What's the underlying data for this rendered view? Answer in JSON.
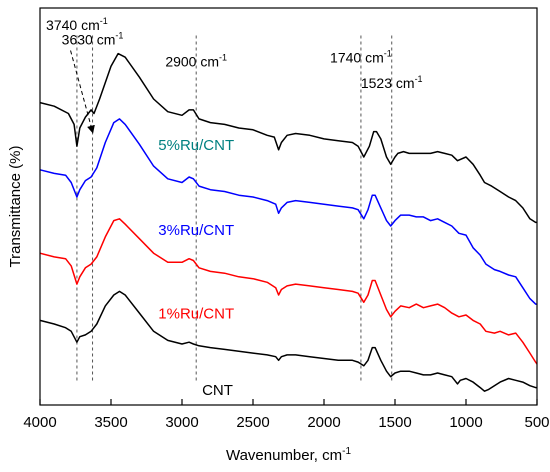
{
  "chart_data": {
    "type": "line",
    "xlabel": "Wavenumber, cm",
    "xlabel_superscript": "-1",
    "ylabel": "Transmittance (%)",
    "xlim": [
      4000,
      500
    ],
    "x_reversed": true,
    "xticks": [
      4000,
      3500,
      3000,
      2500,
      2000,
      1500,
      1000,
      500
    ],
    "ylim": [
      0,
      1
    ],
    "y_tick_labels": false,
    "grid": false,
    "reference_lines": [
      3740,
      3630,
      2900,
      1740,
      1523
    ],
    "annotations": [
      {
        "text": "3740 cm",
        "sup": "-1",
        "x": 3740,
        "y": 1.0
      },
      {
        "text": "3630 cm",
        "sup": "-1",
        "x": 3630,
        "y": 0.96,
        "arrow_to": [
          3630,
          0.72
        ]
      },
      {
        "text": "2900 cm",
        "sup": "-1",
        "x": 2900,
        "y": 0.9
      },
      {
        "text": "1740 cm",
        "sup": "-1",
        "x": 1740,
        "y": 0.91
      },
      {
        "text": "1523 cm",
        "sup": "-1",
        "x": 1523,
        "y": 0.84
      }
    ],
    "series": [
      {
        "name": "5%Ru/CNT",
        "color": "#000000",
        "label_color": "#008080",
        "label_pos": [
          2900,
          0.67
        ],
        "points": [
          [
            4000,
            0.8
          ],
          [
            3900,
            0.79
          ],
          [
            3800,
            0.77
          ],
          [
            3760,
            0.74
          ],
          [
            3740,
            0.68
          ],
          [
            3720,
            0.73
          ],
          [
            3680,
            0.76
          ],
          [
            3640,
            0.78
          ],
          [
            3620,
            0.77
          ],
          [
            3580,
            0.81
          ],
          [
            3500,
            0.9
          ],
          [
            3450,
            0.935
          ],
          [
            3400,
            0.925
          ],
          [
            3300,
            0.87
          ],
          [
            3200,
            0.81
          ],
          [
            3100,
            0.775
          ],
          [
            3000,
            0.765
          ],
          [
            2950,
            0.78
          ],
          [
            2920,
            0.78
          ],
          [
            2880,
            0.755
          ],
          [
            2800,
            0.745
          ],
          [
            2700,
            0.74
          ],
          [
            2600,
            0.73
          ],
          [
            2500,
            0.725
          ],
          [
            2400,
            0.71
          ],
          [
            2350,
            0.705
          ],
          [
            2320,
            0.67
          ],
          [
            2300,
            0.69
          ],
          [
            2260,
            0.71
          ],
          [
            2200,
            0.715
          ],
          [
            2100,
            0.71
          ],
          [
            2000,
            0.7
          ],
          [
            1900,
            0.695
          ],
          [
            1800,
            0.69
          ],
          [
            1760,
            0.68
          ],
          [
            1720,
            0.65
          ],
          [
            1680,
            0.68
          ],
          [
            1650,
            0.72
          ],
          [
            1630,
            0.72
          ],
          [
            1600,
            0.7
          ],
          [
            1560,
            0.65
          ],
          [
            1530,
            0.63
          ],
          [
            1500,
            0.65
          ],
          [
            1480,
            0.66
          ],
          [
            1440,
            0.665
          ],
          [
            1400,
            0.66
          ],
          [
            1300,
            0.66
          ],
          [
            1250,
            0.66
          ],
          [
            1200,
            0.665
          ],
          [
            1150,
            0.66
          ],
          [
            1100,
            0.655
          ],
          [
            1060,
            0.64
          ],
          [
            1000,
            0.65
          ],
          [
            950,
            0.63
          ],
          [
            900,
            0.6
          ],
          [
            870,
            0.58
          ],
          [
            820,
            0.57
          ],
          [
            760,
            0.555
          ],
          [
            700,
            0.54
          ],
          [
            650,
            0.53
          ],
          [
            600,
            0.51
          ],
          [
            550,
            0.48
          ],
          [
            510,
            0.47
          ],
          [
            500,
            0.47
          ]
        ]
      },
      {
        "name": "3%Ru/CNT",
        "color": "#0000ff",
        "label_color": "#0000ff",
        "label_pos": [
          2900,
          0.435
        ],
        "points": [
          [
            4000,
            0.615
          ],
          [
            3900,
            0.605
          ],
          [
            3820,
            0.6
          ],
          [
            3780,
            0.58
          ],
          [
            3740,
            0.54
          ],
          [
            3720,
            0.56
          ],
          [
            3680,
            0.585
          ],
          [
            3640,
            0.595
          ],
          [
            3600,
            0.62
          ],
          [
            3540,
            0.69
          ],
          [
            3480,
            0.745
          ],
          [
            3440,
            0.755
          ],
          [
            3400,
            0.74
          ],
          [
            3300,
            0.685
          ],
          [
            3200,
            0.625
          ],
          [
            3100,
            0.59
          ],
          [
            3000,
            0.58
          ],
          [
            2950,
            0.595
          ],
          [
            2920,
            0.59
          ],
          [
            2880,
            0.57
          ],
          [
            2800,
            0.56
          ],
          [
            2700,
            0.555
          ],
          [
            2600,
            0.545
          ],
          [
            2500,
            0.54
          ],
          [
            2400,
            0.53
          ],
          [
            2340,
            0.52
          ],
          [
            2320,
            0.495
          ],
          [
            2300,
            0.51
          ],
          [
            2260,
            0.525
          ],
          [
            2200,
            0.53
          ],
          [
            2100,
            0.525
          ],
          [
            2000,
            0.52
          ],
          [
            1900,
            0.515
          ],
          [
            1800,
            0.51
          ],
          [
            1760,
            0.505
          ],
          [
            1720,
            0.48
          ],
          [
            1690,
            0.505
          ],
          [
            1660,
            0.545
          ],
          [
            1640,
            0.545
          ],
          [
            1600,
            0.51
          ],
          [
            1560,
            0.475
          ],
          [
            1530,
            0.46
          ],
          [
            1500,
            0.475
          ],
          [
            1460,
            0.49
          ],
          [
            1400,
            0.49
          ],
          [
            1350,
            0.485
          ],
          [
            1300,
            0.485
          ],
          [
            1250,
            0.475
          ],
          [
            1200,
            0.48
          ],
          [
            1150,
            0.47
          ],
          [
            1100,
            0.46
          ],
          [
            1050,
            0.44
          ],
          [
            1000,
            0.435
          ],
          [
            950,
            0.4
          ],
          [
            900,
            0.38
          ],
          [
            860,
            0.355
          ],
          [
            800,
            0.34
          ],
          [
            760,
            0.335
          ],
          [
            700,
            0.325
          ],
          [
            650,
            0.32
          ],
          [
            600,
            0.29
          ],
          [
            550,
            0.26
          ],
          [
            510,
            0.245
          ],
          [
            500,
            0.245
          ]
        ]
      },
      {
        "name": "1%Ru/CNT",
        "color": "#ff0000",
        "label_color": "#ff0000",
        "label_pos": [
          2900,
          0.205
        ],
        "points": [
          [
            4000,
            0.385
          ],
          [
            3900,
            0.375
          ],
          [
            3820,
            0.37
          ],
          [
            3780,
            0.35
          ],
          [
            3740,
            0.3
          ],
          [
            3720,
            0.32
          ],
          [
            3680,
            0.345
          ],
          [
            3640,
            0.355
          ],
          [
            3600,
            0.375
          ],
          [
            3540,
            0.43
          ],
          [
            3480,
            0.475
          ],
          [
            3440,
            0.48
          ],
          [
            3400,
            0.465
          ],
          [
            3300,
            0.425
          ],
          [
            3200,
            0.385
          ],
          [
            3100,
            0.36
          ],
          [
            3000,
            0.36
          ],
          [
            2950,
            0.37
          ],
          [
            2920,
            0.365
          ],
          [
            2880,
            0.345
          ],
          [
            2800,
            0.335
          ],
          [
            2700,
            0.33
          ],
          [
            2600,
            0.32
          ],
          [
            2500,
            0.315
          ],
          [
            2400,
            0.305
          ],
          [
            2340,
            0.29
          ],
          [
            2320,
            0.27
          ],
          [
            2300,
            0.285
          ],
          [
            2260,
            0.295
          ],
          [
            2200,
            0.3
          ],
          [
            2100,
            0.295
          ],
          [
            2000,
            0.29
          ],
          [
            1900,
            0.285
          ],
          [
            1800,
            0.28
          ],
          [
            1760,
            0.275
          ],
          [
            1720,
            0.25
          ],
          [
            1690,
            0.27
          ],
          [
            1660,
            0.31
          ],
          [
            1640,
            0.31
          ],
          [
            1600,
            0.27
          ],
          [
            1560,
            0.23
          ],
          [
            1530,
            0.21
          ],
          [
            1500,
            0.225
          ],
          [
            1460,
            0.24
          ],
          [
            1400,
            0.235
          ],
          [
            1350,
            0.245
          ],
          [
            1300,
            0.235
          ],
          [
            1250,
            0.24
          ],
          [
            1200,
            0.245
          ],
          [
            1150,
            0.235
          ],
          [
            1100,
            0.22
          ],
          [
            1050,
            0.21
          ],
          [
            1000,
            0.215
          ],
          [
            950,
            0.2
          ],
          [
            900,
            0.19
          ],
          [
            860,
            0.17
          ],
          [
            800,
            0.165
          ],
          [
            760,
            0.17
          ],
          [
            700,
            0.16
          ],
          [
            650,
            0.165
          ],
          [
            600,
            0.14
          ],
          [
            550,
            0.11
          ],
          [
            510,
            0.085
          ],
          [
            500,
            0.08
          ]
        ]
      },
      {
        "name": "CNT",
        "color": "#000000",
        "label_color": "#000000",
        "label_pos": [
          2750,
          -0.005
        ],
        "points": [
          [
            4000,
            0.2
          ],
          [
            3900,
            0.19
          ],
          [
            3820,
            0.18
          ],
          [
            3780,
            0.17
          ],
          [
            3740,
            0.14
          ],
          [
            3720,
            0.155
          ],
          [
            3680,
            0.16
          ],
          [
            3640,
            0.17
          ],
          [
            3600,
            0.19
          ],
          [
            3540,
            0.24
          ],
          [
            3480,
            0.27
          ],
          [
            3440,
            0.28
          ],
          [
            3400,
            0.27
          ],
          [
            3300,
            0.22
          ],
          [
            3200,
            0.17
          ],
          [
            3100,
            0.145
          ],
          [
            3000,
            0.135
          ],
          [
            2950,
            0.14
          ],
          [
            2920,
            0.135
          ],
          [
            2880,
            0.13
          ],
          [
            2800,
            0.125
          ],
          [
            2700,
            0.12
          ],
          [
            2600,
            0.115
          ],
          [
            2500,
            0.11
          ],
          [
            2400,
            0.105
          ],
          [
            2340,
            0.1
          ],
          [
            2320,
            0.09
          ],
          [
            2300,
            0.1
          ],
          [
            2260,
            0.105
          ],
          [
            2200,
            0.105
          ],
          [
            2100,
            0.1
          ],
          [
            2000,
            0.095
          ],
          [
            1900,
            0.09
          ],
          [
            1800,
            0.09
          ],
          [
            1760,
            0.085
          ],
          [
            1720,
            0.075
          ],
          [
            1690,
            0.09
          ],
          [
            1660,
            0.125
          ],
          [
            1640,
            0.125
          ],
          [
            1600,
            0.09
          ],
          [
            1560,
            0.06
          ],
          [
            1530,
            0.045
          ],
          [
            1500,
            0.055
          ],
          [
            1460,
            0.06
          ],
          [
            1400,
            0.06
          ],
          [
            1350,
            0.055
          ],
          [
            1300,
            0.05
          ],
          [
            1250,
            0.05
          ],
          [
            1200,
            0.055
          ],
          [
            1150,
            0.05
          ],
          [
            1100,
            0.045
          ],
          [
            1060,
            0.025
          ],
          [
            1040,
            0.035
          ],
          [
            1000,
            0.04
          ],
          [
            950,
            0.03
          ],
          [
            900,
            0.015
          ],
          [
            870,
            0.005
          ],
          [
            840,
            0.01
          ],
          [
            800,
            0.02
          ],
          [
            760,
            0.03
          ],
          [
            700,
            0.04
          ],
          [
            650,
            0.035
          ],
          [
            600,
            0.03
          ],
          [
            550,
            0.02
          ],
          [
            510,
            0.015
          ],
          [
            500,
            0.015
          ]
        ]
      }
    ]
  }
}
